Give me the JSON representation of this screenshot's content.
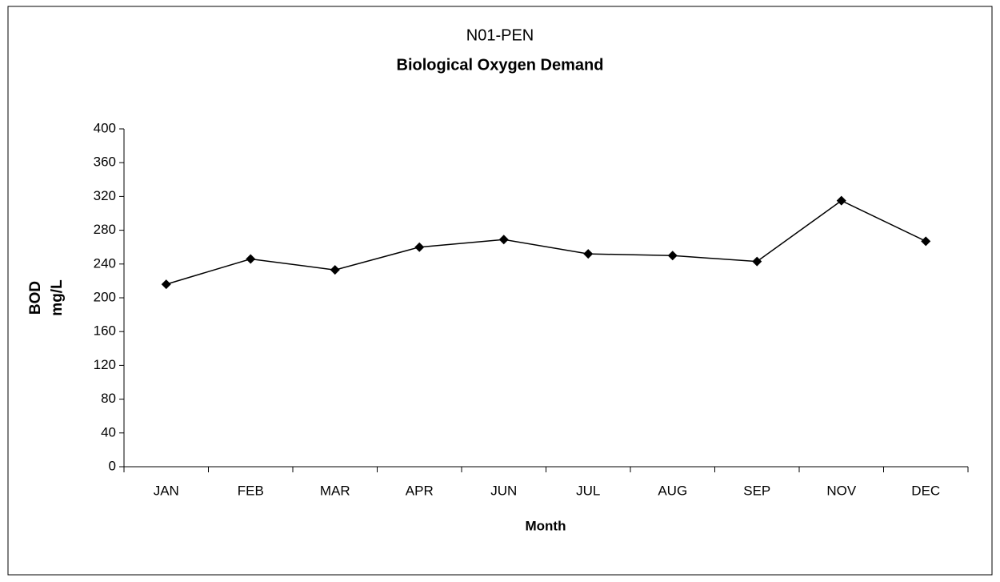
{
  "chart_data": {
    "type": "line",
    "title": "N01-PEN",
    "subtitle": "Biological Oxygen Demand",
    "xlabel": "Month",
    "ylabel_lines": [
      "BOD",
      "mg/L"
    ],
    "categories": [
      "JAN",
      "FEB",
      "MAR",
      "APR",
      "JUN",
      "JUL",
      "AUG",
      "SEP",
      "NOV",
      "DEC"
    ],
    "values": [
      216,
      246,
      233,
      260,
      269,
      252,
      250,
      243,
      315,
      267
    ],
    "color": "#000000",
    "ylim": [
      0,
      400
    ],
    "yticks": [
      0,
      40,
      80,
      120,
      160,
      200,
      240,
      280,
      320,
      360,
      400
    ],
    "grid": false
  }
}
